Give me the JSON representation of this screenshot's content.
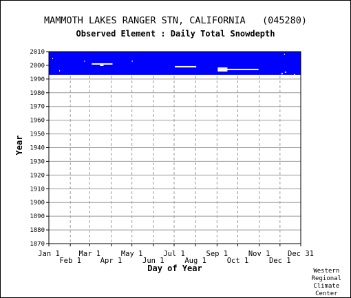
{
  "chart_data": {
    "type": "heatmap",
    "title": "MAMMOTH LAKES RANGER STN, CALIFORNIA   (045280)",
    "subtitle": "Observed Element : Daily Total Snowdepth",
    "xlabel": "Day of Year",
    "ylabel": "Year",
    "x_ticks_upper": [
      "Jan 1",
      "Mar 1",
      "May 1",
      "Jul 1",
      "Sep 1",
      "Nov 1",
      "Dec 31"
    ],
    "x_ticks_lower": [
      "Feb 1",
      "Apr 1",
      "Jun 1",
      "Aug 1",
      "Oct 1",
      "Dec 1"
    ],
    "x_tick_days_upper": [
      1,
      60,
      121,
      182,
      244,
      305,
      365
    ],
    "x_tick_days_lower": [
      32,
      91,
      152,
      213,
      274,
      335
    ],
    "xlim": [
      1,
      365
    ],
    "y_ticks": [
      1870,
      1880,
      1890,
      1900,
      1910,
      1920,
      1930,
      1940,
      1950,
      1960,
      1970,
      1980,
      1990,
      2000,
      2010
    ],
    "ylim": [
      1870,
      2010
    ],
    "grid": true,
    "data_color": "#0000ff",
    "coverage": {
      "start_year": 1993,
      "end_year": 2010,
      "start_day": 1,
      "end_day": 365
    },
    "missing_segments": [
      {
        "year": 2001,
        "start_day": 63,
        "end_day": 93
      },
      {
        "year": 2000,
        "start_day": 75,
        "end_day": 80
      },
      {
        "year": 1999,
        "start_day": 183,
        "end_day": 214
      },
      {
        "year": 1998,
        "start_day": 245,
        "end_day": 259
      },
      {
        "year": 1997,
        "start_day": 245,
        "end_day": 304
      },
      {
        "year": 1996,
        "start_day": 245,
        "end_day": 259
      },
      {
        "year": 2005,
        "start_day": 6,
        "end_day": 7
      },
      {
        "year": 2003,
        "start_day": 52,
        "end_day": 53
      },
      {
        "year": 1996,
        "start_day": 16,
        "end_day": 17
      },
      {
        "year": 1995,
        "start_day": 342,
        "end_day": 344
      },
      {
        "year": 1994,
        "start_day": 337,
        "end_day": 339
      },
      {
        "year": 1993,
        "start_day": 355,
        "end_day": 357
      },
      {
        "year": 2008,
        "start_day": 341,
        "end_day": 342
      },
      {
        "year": 2003,
        "start_day": 121,
        "end_day": 122
      }
    ]
  },
  "credit": [
    "Western",
    "Regional",
    "Climate",
    "Center"
  ]
}
